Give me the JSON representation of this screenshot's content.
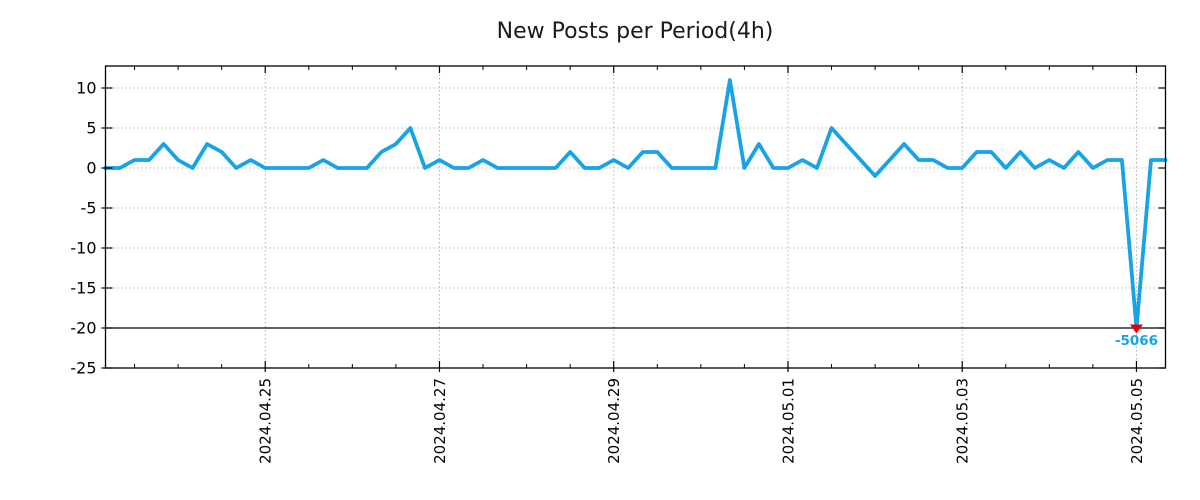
{
  "figure": {
    "title": "New Posts per Period(4h)"
  },
  "colors": {
    "line": "#17a4e6",
    "grid": "#b0b0b0",
    "axis": "#000000",
    "clip_line": "#000000",
    "marker": "#e2000f",
    "annotation_text": "#17a4e6",
    "title_text": "#1a1a1a",
    "tick_text": "#000000",
    "background": "#ffffff"
  },
  "chart_data": {
    "type": "line",
    "title": "New Posts per Period(4h)",
    "x_start": "2024.04.23 04:00",
    "x_step_hours": 4,
    "x_total_hours": 292,
    "values": [
      0,
      0,
      1,
      1,
      3,
      1,
      0,
      3,
      2,
      0,
      1,
      0,
      0,
      0,
      0,
      1,
      0,
      0,
      0,
      2,
      3,
      5,
      0,
      1,
      0,
      0,
      1,
      0,
      0,
      0,
      0,
      0,
      2,
      0,
      0,
      1,
      0,
      2,
      2,
      0,
      0,
      0,
      0,
      11,
      0,
      3,
      0,
      0,
      1,
      0,
      5,
      3,
      1,
      -1,
      1,
      3,
      1,
      1,
      0,
      0,
      2,
      2,
      0,
      2,
      0,
      1,
      0,
      2,
      0,
      1,
      1,
      -5066,
      1,
      1
    ],
    "ylim": [
      -25,
      12.75
    ],
    "yticks": [
      10,
      5,
      0,
      -5,
      -10,
      -15,
      -20,
      -25
    ],
    "xticks": [
      {
        "hours": 44,
        "label": "2024.04.25"
      },
      {
        "hours": 92,
        "label": "2024.04.27"
      },
      {
        "hours": 140,
        "label": "2024.04.29"
      },
      {
        "hours": 188,
        "label": "2024.05.01"
      },
      {
        "hours": 236,
        "label": "2024.05.03"
      },
      {
        "hours": 284,
        "label": "2024.05.05"
      }
    ],
    "minor_xtick_every_hours": 12,
    "grid_style": "dotted",
    "legend": "none",
    "clip_min": -20,
    "annotation": {
      "label": "-5066",
      "value": -5066,
      "at_hours": 284,
      "clipped_to": -20,
      "marker": "red-triangle-down"
    }
  }
}
